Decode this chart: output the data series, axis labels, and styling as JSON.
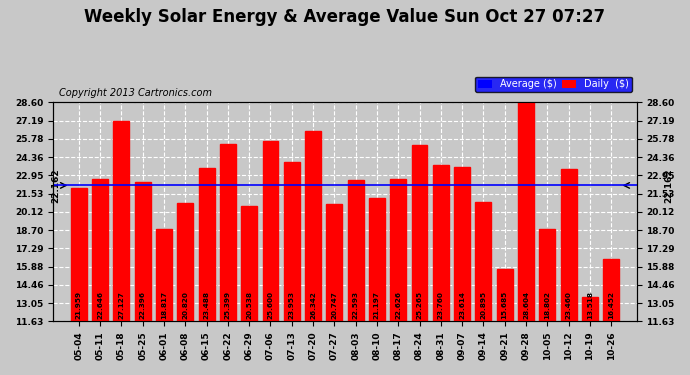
{
  "title": "Weekly Solar Energy & Average Value Sun Oct 27 07:27",
  "copyright": "Copyright 2013 Cartronics.com",
  "categories": [
    "05-04",
    "05-11",
    "05-18",
    "05-25",
    "06-01",
    "06-08",
    "06-15",
    "06-22",
    "06-29",
    "07-06",
    "07-13",
    "07-20",
    "07-27",
    "08-03",
    "08-10",
    "08-17",
    "08-24",
    "08-31",
    "09-07",
    "09-14",
    "09-21",
    "09-28",
    "10-05",
    "10-12",
    "10-19",
    "10-26"
  ],
  "values": [
    21.959,
    22.646,
    27.127,
    22.396,
    18.817,
    20.82,
    23.488,
    25.399,
    20.538,
    25.6,
    23.953,
    26.342,
    20.747,
    22.593,
    21.197,
    22.626,
    25.265,
    23.76,
    23.614,
    20.895,
    15.685,
    28.604,
    18.802,
    23.46,
    13.518,
    16.452
  ],
  "average": 22.162,
  "bar_color": "#ff0000",
  "average_line_color": "#0000ff",
  "background_color": "#c8c8c8",
  "plot_bg_color": "#c8c8c8",
  "grid_color": "#ffffff",
  "yticks": [
    11.63,
    13.05,
    14.46,
    15.88,
    17.29,
    18.7,
    20.12,
    21.53,
    22.95,
    24.36,
    25.78,
    27.19,
    28.6
  ],
  "ymin": 11.63,
  "ymax": 28.6,
  "legend_average_color": "#0000ff",
  "legend_daily_color": "#ff0000",
  "title_fontsize": 12,
  "copyright_fontsize": 7,
  "tick_label_fontsize": 6.5,
  "value_label_fontsize": 5.2
}
